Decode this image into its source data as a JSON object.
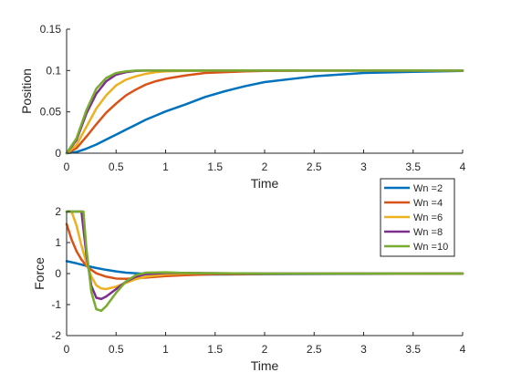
{
  "chart_data": [
    {
      "type": "line",
      "xlabel": "Time",
      "ylabel": "Position",
      "xlim": [
        0,
        4
      ],
      "ylim": [
        0,
        0.15
      ],
      "xticks": [
        0,
        0.5,
        1,
        1.5,
        2,
        2.5,
        3,
        3.5,
        4
      ],
      "xtick_labels": [
        "0",
        "0.5",
        "1",
        "1.5",
        "2",
        "2.5",
        "3",
        "3.5",
        "4"
      ],
      "yticks": [
        0,
        0.05,
        0.1,
        0.15
      ],
      "ytick_labels": [
        "0",
        "0.05",
        "0.1",
        "0.15"
      ],
      "grid": false,
      "series": [
        {
          "name": "Wn =2",
          "color": "#0072BD",
          "x": [
            0,
            0.1,
            0.2,
            0.3,
            0.4,
            0.5,
            0.6,
            0.7,
            0.8,
            0.9,
            1.0,
            1.2,
            1.4,
            1.6,
            1.8,
            2.0,
            2.5,
            3.0,
            3.5,
            4.0
          ],
          "y": [
            0,
            0.0015,
            0.0055,
            0.0105,
            0.0165,
            0.0225,
            0.0285,
            0.0345,
            0.0405,
            0.0455,
            0.0505,
            0.059,
            0.068,
            0.075,
            0.081,
            0.086,
            0.093,
            0.097,
            0.0985,
            0.0995
          ]
        },
        {
          "name": "Wn =4",
          "color": "#D95319",
          "x": [
            0,
            0.1,
            0.2,
            0.3,
            0.4,
            0.5,
            0.6,
            0.7,
            0.8,
            0.9,
            1.0,
            1.2,
            1.4,
            1.6,
            1.8,
            2.0,
            2.5,
            3.0,
            4.0
          ],
          "y": [
            0,
            0.006,
            0.02,
            0.035,
            0.049,
            0.06,
            0.07,
            0.077,
            0.083,
            0.087,
            0.09,
            0.094,
            0.097,
            0.098,
            0.099,
            0.0995,
            0.1,
            0.1,
            0.1
          ]
        },
        {
          "name": "Wn =6",
          "color": "#EDB120",
          "x": [
            0,
            0.1,
            0.2,
            0.3,
            0.4,
            0.5,
            0.6,
            0.7,
            0.8,
            0.9,
            1.0,
            1.2,
            1.5,
            2.0,
            3.0,
            4.0
          ],
          "y": [
            0,
            0.01,
            0.032,
            0.054,
            0.07,
            0.082,
            0.089,
            0.093,
            0.096,
            0.098,
            0.099,
            0.0995,
            0.1,
            0.1,
            0.1,
            0.1
          ]
        },
        {
          "name": "Wn =8",
          "color": "#7E2F8E",
          "x": [
            0,
            0.1,
            0.2,
            0.3,
            0.4,
            0.5,
            0.6,
            0.7,
            0.8,
            1.0,
            1.5,
            2.0,
            3.0,
            4.0
          ],
          "y": [
            0,
            0.016,
            0.048,
            0.072,
            0.087,
            0.095,
            0.098,
            0.0995,
            0.1,
            0.1,
            0.1,
            0.1,
            0.1,
            0.1
          ]
        },
        {
          "name": "Wn =10",
          "color": "#77AC30",
          "x": [
            0,
            0.1,
            0.2,
            0.3,
            0.4,
            0.5,
            0.6,
            0.7,
            0.8,
            1.0,
            1.5,
            2.0,
            3.0,
            4.0
          ],
          "y": [
            0,
            0.018,
            0.052,
            0.078,
            0.091,
            0.097,
            0.099,
            0.1,
            0.1,
            0.1,
            0.1,
            0.1,
            0.1,
            0.1
          ]
        }
      ]
    },
    {
      "type": "line",
      "xlabel": "Time",
      "ylabel": "Force",
      "xlim": [
        0,
        4
      ],
      "ylim": [
        -2,
        2
      ],
      "xticks": [
        0,
        0.5,
        1,
        1.5,
        2,
        2.5,
        3,
        3.5,
        4
      ],
      "xtick_labels": [
        "0",
        "0.5",
        "1",
        "1.5",
        "2",
        "2.5",
        "3",
        "3.5",
        "4"
      ],
      "yticks": [
        -2,
        -1,
        0,
        1,
        2
      ],
      "ytick_labels": [
        "-2",
        "-1",
        "0",
        "1",
        "2"
      ],
      "grid": false,
      "legend": {
        "location": "northeast"
      },
      "series": [
        {
          "name": "Wn =2",
          "color": "#0072BD",
          "x": [
            0,
            0.1,
            0.2,
            0.3,
            0.4,
            0.5,
            0.6,
            0.8,
            1.0,
            1.5,
            2.0,
            3.0,
            4.0
          ],
          "y": [
            0.4,
            0.33,
            0.25,
            0.18,
            0.12,
            0.07,
            0.03,
            -0.01,
            -0.03,
            -0.03,
            -0.02,
            -0.01,
            0.0
          ]
        },
        {
          "name": "Wn =4",
          "color": "#D95319",
          "x": [
            0,
            0.05,
            0.1,
            0.15,
            0.2,
            0.25,
            0.3,
            0.4,
            0.5,
            0.6,
            0.8,
            1.0,
            1.2,
            1.5,
            2.0,
            3.0,
            4.0
          ],
          "y": [
            1.6,
            1.1,
            0.72,
            0.45,
            0.25,
            0.12,
            0.01,
            -0.1,
            -0.16,
            -0.17,
            -0.13,
            -0.08,
            -0.05,
            -0.02,
            -0.01,
            0.0,
            0.0
          ]
        },
        {
          "name": "Wn =6",
          "color": "#EDB120",
          "x": [
            0,
            0.05,
            0.1,
            0.15,
            0.2,
            0.25,
            0.3,
            0.35,
            0.4,
            0.5,
            0.6,
            0.7,
            0.8,
            1.0,
            1.2,
            1.5,
            2.0,
            4.0
          ],
          "y": [
            2.0,
            2.0,
            1.55,
            0.9,
            0.35,
            -0.1,
            -0.38,
            -0.48,
            -0.5,
            -0.42,
            -0.3,
            -0.18,
            -0.1,
            -0.03,
            0.0,
            0.01,
            0.0,
            0.0
          ]
        },
        {
          "name": "Wn =8",
          "color": "#7E2F8E",
          "x": [
            0,
            0.05,
            0.1,
            0.15,
            0.2,
            0.25,
            0.3,
            0.35,
            0.4,
            0.5,
            0.6,
            0.7,
            0.8,
            1.0,
            1.2,
            1.5,
            2.0,
            4.0
          ],
          "y": [
            2.0,
            2.0,
            2.0,
            2.0,
            0.6,
            -0.4,
            -0.78,
            -0.82,
            -0.74,
            -0.5,
            -0.26,
            -0.1,
            -0.02,
            0.02,
            0.02,
            0.01,
            0.0,
            0.0
          ]
        },
        {
          "name": "Wn =10",
          "color": "#77AC30",
          "x": [
            0,
            0.05,
            0.1,
            0.15,
            0.17,
            0.2,
            0.25,
            0.3,
            0.35,
            0.4,
            0.5,
            0.6,
            0.7,
            0.8,
            1.0,
            1.2,
            1.5,
            2.0,
            4.0
          ],
          "y": [
            2.0,
            2.0,
            2.0,
            2.0,
            2.0,
            0.8,
            -0.6,
            -1.15,
            -1.2,
            -1.05,
            -0.62,
            -0.25,
            -0.05,
            0.03,
            0.04,
            0.02,
            0.01,
            0.0,
            0.0
          ]
        }
      ]
    }
  ]
}
